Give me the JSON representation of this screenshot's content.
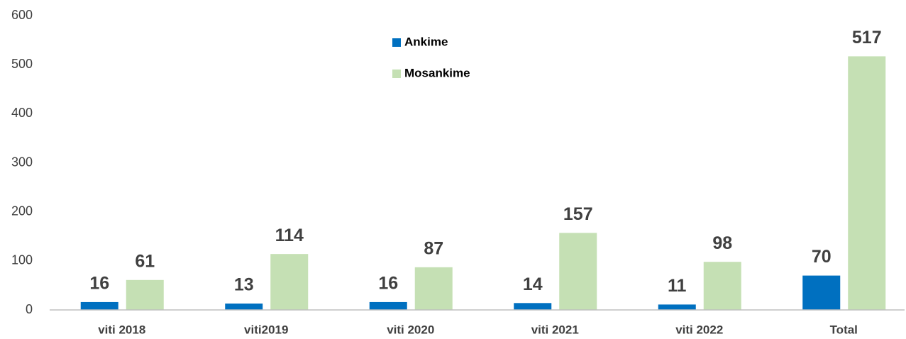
{
  "chart_data": {
    "type": "bar",
    "categories": [
      "viti 2018",
      "viti2019",
      "viti 2020",
      "viti 2021",
      "viti 2022",
      "Total"
    ],
    "series": [
      {
        "name": "Ankime",
        "color": "#0070c0",
        "values": [
          16,
          13,
          16,
          14,
          11,
          70
        ]
      },
      {
        "name": "Mosankime",
        "color": "#c5e0b4",
        "values": [
          61,
          114,
          87,
          157,
          98,
          517
        ]
      }
    ],
    "ylim": [
      0,
      600
    ],
    "yticks": [
      0,
      100,
      200,
      300,
      400,
      500,
      600
    ],
    "grid": false
  }
}
